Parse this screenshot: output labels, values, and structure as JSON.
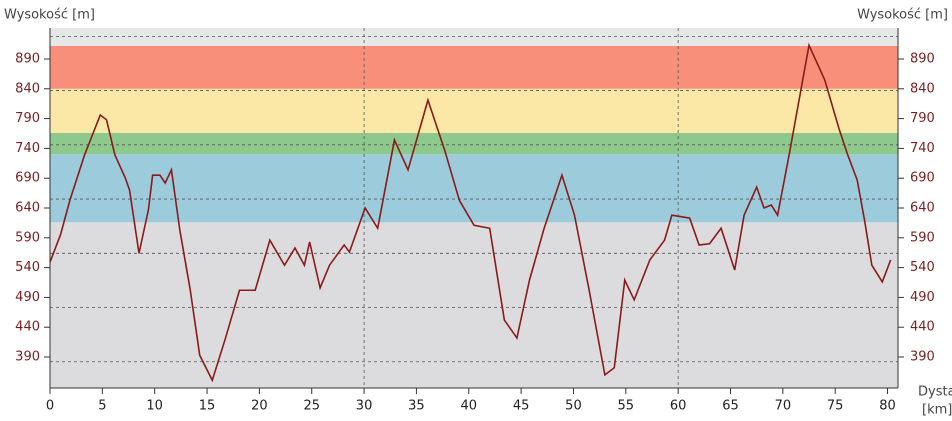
{
  "chart_data": {
    "type": "line",
    "y_label_left": "Wysokość [m]",
    "y_label_right": "Wysokość [m]",
    "x_label_1": "Dysta",
    "x_label_2": "[km]",
    "xlim": [
      0,
      81
    ],
    "ylim": [
      338,
      942
    ],
    "xticks": [
      0,
      5,
      10,
      15,
      20,
      25,
      30,
      35,
      40,
      45,
      50,
      55,
      60,
      65,
      70,
      75,
      80
    ],
    "yticks": [
      390,
      440,
      490,
      540,
      590,
      640,
      690,
      740,
      790,
      840,
      890
    ],
    "xgrid": [
      30,
      60
    ],
    "ygrid": [
      382,
      473,
      564,
      655,
      746,
      837,
      928
    ],
    "bands": [
      {
        "from": 338,
        "to": 616,
        "color": "#dcdcde"
      },
      {
        "from": 616,
        "to": 730,
        "color": "#9ccbdc"
      },
      {
        "from": 730,
        "to": 766,
        "color": "#8dc88d"
      },
      {
        "from": 766,
        "to": 840,
        "color": "#fce8a6"
      },
      {
        "from": 840,
        "to": 912,
        "color": "#f78f7a"
      },
      {
        "from": 912,
        "to": 942,
        "color": "#e6e8e8"
      }
    ],
    "series": [
      {
        "color": "#8b1a1a",
        "x": [
          0,
          1,
          1.9,
          3.3,
          4.8,
          5.4,
          6.2,
          7.2,
          7.6,
          8.5,
          9.4,
          9.8,
          10.5,
          11,
          11.6,
          12.4,
          13.4,
          14.3,
          15.5,
          16.7,
          18.1,
          19.6,
          21,
          22.4,
          23.4,
          24.3,
          24.8,
          25.8,
          26.7,
          28.1,
          28.6,
          30.1,
          31.3,
          32.9,
          34.2,
          36.1,
          37.7,
          39.1,
          40.5,
          42,
          43.4,
          44.6,
          45.8,
          47.2,
          48.9,
          50.1,
          51.5,
          53,
          53.9,
          54.9,
          55.8,
          57.3,
          58.7,
          59.4,
          61.1,
          62,
          63,
          64.1,
          65.4,
          66.3,
          67.5,
          68.2,
          68.9,
          69.5,
          70.6,
          72.5,
          74,
          75.4,
          76.2,
          77.1,
          77.8,
          78.5,
          79.5,
          80.3
        ],
        "values": [
          549,
          595,
          653,
          729,
          796,
          788,
          729,
          690,
          670,
          564,
          637,
          695,
          695,
          682,
          704,
          603,
          502,
          393,
          351,
          418,
          502,
          502,
          586,
          544,
          573,
          544,
          583,
          506,
          544,
          578,
          566,
          640,
          606,
          754,
          704,
          821,
          737,
          653,
          611,
          606,
          452,
          422,
          519,
          606,
          695,
          628,
          502,
          360,
          372,
          519,
          486,
          553,
          586,
          628,
          623,
          578,
          580,
          606,
          536,
          628,
          675,
          640,
          645,
          628,
          729,
          913,
          855,
          771,
          729,
          687,
          620,
          544,
          516,
          553
        ]
      }
    ]
  }
}
